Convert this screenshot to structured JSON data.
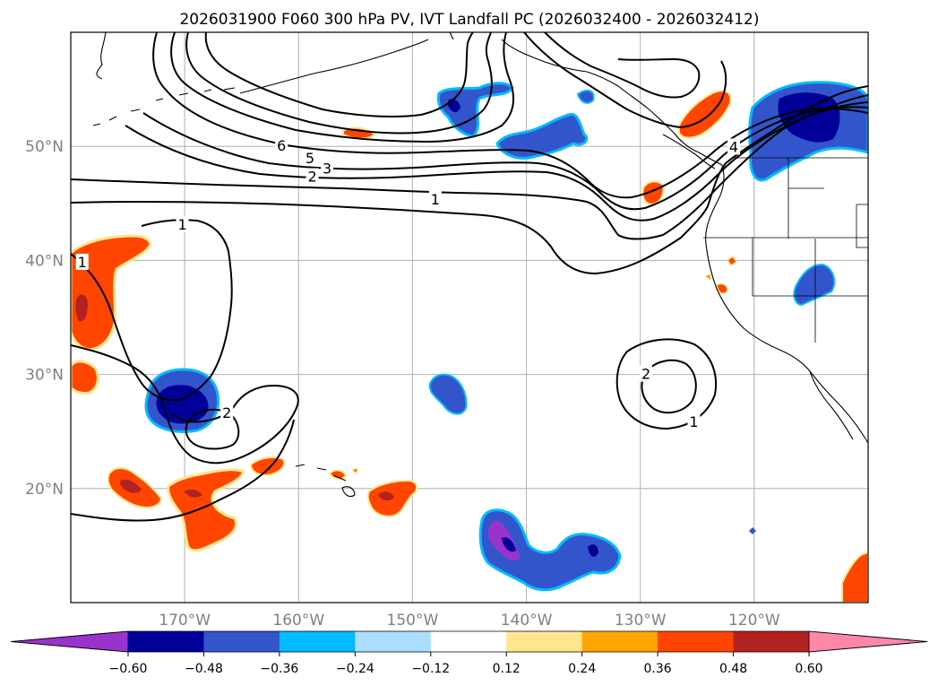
{
  "chart_data": {
    "type": "map-contour",
    "title": "2026031900 F060 300 hPa PV, IVT Landfall PC (2026032400 - 2026032412)",
    "lon_range": [
      -180,
      -110
    ],
    "lat_range": [
      10,
      60
    ],
    "lat_labels": [
      "50°N",
      "40°N",
      "30°N",
      "20°N"
    ],
    "lat_values": [
      50,
      40,
      30,
      20
    ],
    "lon_labels": [
      "170°W",
      "160°W",
      "150°W",
      "140°W",
      "130°W",
      "120°W"
    ],
    "lon_values": [
      -170,
      -160,
      -150,
      -140,
      -130,
      -120
    ],
    "grid": true,
    "contour_levels": [
      1,
      2,
      3,
      4,
      5,
      6
    ],
    "contour_labels": [
      {
        "text": "6",
        "lon": -161.5,
        "lat": 50.0
      },
      {
        "text": "5",
        "lon": -159.0,
        "lat": 48.9
      },
      {
        "text": "3",
        "lon": -157.5,
        "lat": 48.0
      },
      {
        "text": "2",
        "lon": -158.8,
        "lat": 47.3
      },
      {
        "text": "1",
        "lon": -148.0,
        "lat": 45.3
      },
      {
        "text": "1",
        "lon": -170.2,
        "lat": 43.1
      },
      {
        "text": "1",
        "lon": -179.0,
        "lat": 39.8
      },
      {
        "text": "2",
        "lon": -166.3,
        "lat": 26.6
      },
      {
        "text": "2",
        "lon": -129.5,
        "lat": 30.0
      },
      {
        "text": "1",
        "lon": -125.3,
        "lat": 25.8
      },
      {
        "text": "4",
        "lon": -121.8,
        "lat": 49.9
      }
    ],
    "colorbar": {
      "ticks": [
        "−0.60",
        "−0.48",
        "−0.36",
        "−0.24",
        "−0.12",
        "0.12",
        "0.24",
        "0.36",
        "0.48",
        "0.60"
      ],
      "colors": [
        "#9a33cc",
        "#000099",
        "#3355cc",
        "#00bbff",
        "#aaddff",
        "#ffffff",
        "#ffe68c",
        "#ffa500",
        "#ff4500",
        "#b22222",
        "#ff88aa"
      ]
    }
  }
}
